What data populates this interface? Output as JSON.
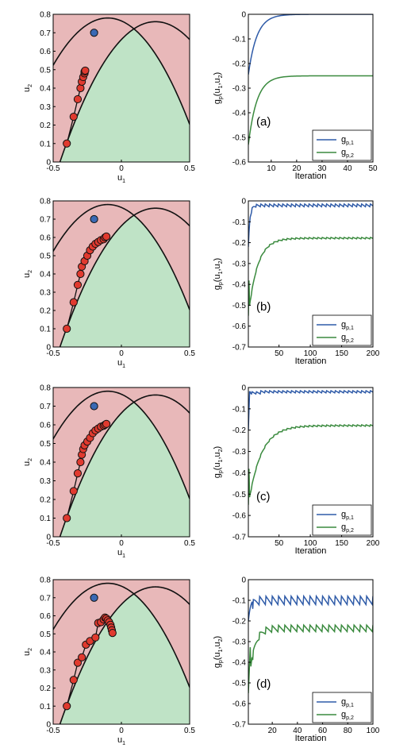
{
  "colors": {
    "infeasible": "#e8b8b9",
    "feasible": "#bfe3c6",
    "curve": "#111111",
    "iterate": "#e03a2f",
    "optimum": "#3a69b4",
    "series1": "#2f5ba8",
    "series2": "#3a8a3e"
  },
  "chart_data": [
    {
      "type": "scatter",
      "panel": "a-left",
      "xlabel": "u",
      "xlabel_sub": "1",
      "ylabel": "u",
      "ylabel_sub": "2",
      "xlim": [
        -0.5,
        0.5
      ],
      "ylim": [
        0,
        0.8
      ],
      "xticks": [
        "-0.5",
        "0",
        "0.5"
      ],
      "yticks": [
        "0",
        "0.1",
        "0.2",
        "0.3",
        "0.4",
        "0.5",
        "0.6",
        "0.7",
        "0.8"
      ],
      "optimum": [
        -0.2,
        0.7
      ],
      "iterates": [
        [
          -0.4,
          0.1
        ],
        [
          -0.35,
          0.245
        ],
        [
          -0.32,
          0.34
        ],
        [
          -0.3,
          0.4
        ],
        [
          -0.29,
          0.435
        ],
        [
          -0.28,
          0.46
        ],
        [
          -0.27,
          0.48
        ],
        [
          -0.27,
          0.49
        ],
        [
          -0.265,
          0.495
        ]
      ]
    },
    {
      "type": "line",
      "panel": "a-right",
      "label": "(a)",
      "xlabel": "Iteration",
      "ylabel": "g",
      "ylabel_sub": "p",
      "ylabel_args": "(u",
      "ylabel_args_sub1": "1",
      "ylabel_args_mid": ",u",
      "ylabel_args_sub2": "2",
      "ylabel_args_end": ")",
      "xlim": [
        1,
        50
      ],
      "ylim": [
        -0.6,
        0
      ],
      "xticks": [
        "10",
        "20",
        "30",
        "40",
        "50"
      ],
      "xtick_values": [
        10,
        20,
        30,
        40,
        50
      ],
      "yticks": [
        "-0.6",
        "-0.5",
        "-0.4",
        "-0.3",
        "-0.2",
        "-0.1",
        "0"
      ],
      "series": [
        {
          "legend": "g",
          "legend_sub": "p,1",
          "color_key": "series1",
          "kind": "exp",
          "start": -0.245,
          "end": 0.0,
          "rate": 0.3,
          "osc": 0,
          "period": 6
        },
        {
          "legend": "g",
          "legend_sub": "p,2",
          "color_key": "series2",
          "kind": "exp",
          "start": -0.53,
          "end": -0.25,
          "rate": 0.3,
          "osc": 0,
          "period": 6
        }
      ]
    },
    {
      "type": "scatter",
      "panel": "b-left",
      "xlabel": "u",
      "xlabel_sub": "1",
      "ylabel": "u",
      "ylabel_sub": "2",
      "xlim": [
        -0.5,
        0.5
      ],
      "ylim": [
        0,
        0.8
      ],
      "xticks": [
        "-0.5",
        "0",
        "0.5"
      ],
      "yticks": [
        "0",
        "0.1",
        "0.2",
        "0.3",
        "0.4",
        "0.5",
        "0.6",
        "0.7",
        "0.8"
      ],
      "optimum": [
        -0.2,
        0.7
      ],
      "iterates": [
        [
          -0.4,
          0.1
        ],
        [
          -0.35,
          0.245
        ],
        [
          -0.32,
          0.34
        ],
        [
          -0.3,
          0.4
        ],
        [
          -0.29,
          0.44
        ],
        [
          -0.27,
          0.47
        ],
        [
          -0.25,
          0.5
        ],
        [
          -0.23,
          0.53
        ],
        [
          -0.21,
          0.55
        ],
        [
          -0.19,
          0.565
        ],
        [
          -0.17,
          0.575
        ],
        [
          -0.15,
          0.585
        ],
        [
          -0.13,
          0.59
        ],
        [
          -0.12,
          0.6
        ],
        [
          -0.11,
          0.605
        ]
      ]
    },
    {
      "type": "line",
      "panel": "b-right",
      "label": "(b)",
      "xlabel": "Iteration",
      "ylabel": "g",
      "ylabel_sub": "p",
      "ylabel_args": "(u",
      "ylabel_args_sub1": "1",
      "ylabel_args_mid": ",u",
      "ylabel_args_sub2": "2",
      "ylabel_args_end": ")",
      "xlim": [
        1,
        200
      ],
      "ylim": [
        -0.7,
        0
      ],
      "xticks": [
        "50",
        "100",
        "150",
        "200"
      ],
      "xtick_values": [
        50,
        100,
        150,
        200
      ],
      "yticks": [
        "-0.7",
        "-0.6",
        "-0.5",
        "-0.4",
        "-0.3",
        "-0.2",
        "-0.1",
        "0"
      ],
      "series": [
        {
          "legend": "g",
          "legend_sub": "p,1",
          "color_key": "series1",
          "kind": "exp",
          "start": -0.22,
          "end": -0.015,
          "rate": 0.4,
          "osc": 0.015,
          "period": 7
        },
        {
          "legend": "g",
          "legend_sub": "p,2",
          "color_key": "series2",
          "kind": "steps",
          "start": -0.55,
          "end": -0.175,
          "rate": 0.07,
          "osc": 0.008,
          "period": 7
        }
      ]
    },
    {
      "type": "scatter",
      "panel": "c-left",
      "xlabel": "u",
      "xlabel_sub": "1",
      "ylabel": "u",
      "ylabel_sub": "2",
      "xlim": [
        -0.5,
        0.5
      ],
      "ylim": [
        0,
        0.8
      ],
      "xticks": [
        "-0.5",
        "0",
        "0.5"
      ],
      "yticks": [
        "0",
        "0.1",
        "0.2",
        "0.3",
        "0.4",
        "0.5",
        "0.6",
        "0.7",
        "0.8"
      ],
      "optimum": [
        -0.2,
        0.7
      ],
      "iterates": [
        [
          -0.4,
          0.1
        ],
        [
          -0.35,
          0.245
        ],
        [
          -0.32,
          0.34
        ],
        [
          -0.3,
          0.4
        ],
        [
          -0.29,
          0.44
        ],
        [
          -0.28,
          0.47
        ],
        [
          -0.27,
          0.49
        ],
        [
          -0.25,
          0.51
        ],
        [
          -0.23,
          0.53
        ],
        [
          -0.21,
          0.555
        ],
        [
          -0.19,
          0.57
        ],
        [
          -0.17,
          0.58
        ],
        [
          -0.15,
          0.59
        ],
        [
          -0.13,
          0.595
        ],
        [
          -0.12,
          0.6
        ],
        [
          -0.11,
          0.605
        ]
      ]
    },
    {
      "type": "line",
      "panel": "c-right",
      "label": "(c)",
      "xlabel": "Iteration",
      "ylabel": "g",
      "ylabel_sub": "p",
      "ylabel_args": "(u",
      "ylabel_args_sub1": "1",
      "ylabel_args_mid": ",u",
      "ylabel_args_sub2": "2",
      "ylabel_args_end": ")",
      "xlim": [
        1,
        200
      ],
      "ylim": [
        -0.7,
        0
      ],
      "xticks": [
        "50",
        "100",
        "150",
        "200"
      ],
      "xtick_values": [
        50,
        100,
        150,
        200
      ],
      "yticks": [
        "-0.7",
        "-0.6",
        "-0.5",
        "-0.4",
        "-0.3",
        "-0.2",
        "-0.1",
        "0"
      ],
      "series": [
        {
          "legend": "g",
          "legend_sub": "p,1",
          "color_key": "series1",
          "kind": "delayed",
          "start": -0.2,
          "end": -0.015,
          "rate": 0.4,
          "osc": 0.012,
          "period": 7
        },
        {
          "legend": "g",
          "legend_sub": "p,2",
          "color_key": "series2",
          "kind": "steps",
          "start": -0.55,
          "end": -0.175,
          "rate": 0.05,
          "osc": 0.008,
          "period": 7
        }
      ]
    },
    {
      "type": "scatter",
      "panel": "d-left",
      "xlabel": "u",
      "xlabel_sub": "1",
      "ylabel": "u",
      "ylabel_sub": "2",
      "xlim": [
        -0.5,
        0.5
      ],
      "ylim": [
        0,
        0.8
      ],
      "xticks": [
        "-0.5",
        "0",
        "0.5"
      ],
      "yticks": [
        "0",
        "0.1",
        "0.2",
        "0.3",
        "0.4",
        "0.5",
        "0.6",
        "0.7",
        "0.8"
      ],
      "optimum": [
        -0.2,
        0.7
      ],
      "iterates": [
        [
          -0.4,
          0.1
        ],
        [
          -0.35,
          0.245
        ],
        [
          -0.32,
          0.34
        ],
        [
          -0.29,
          0.37
        ],
        [
          -0.26,
          0.44
        ],
        [
          -0.23,
          0.46
        ],
        [
          -0.19,
          0.48
        ],
        [
          -0.17,
          0.56
        ],
        [
          -0.15,
          0.565
        ],
        [
          -0.13,
          0.58
        ],
        [
          -0.12,
          0.59
        ],
        [
          -0.11,
          0.585
        ],
        [
          -0.1,
          0.575
        ],
        [
          -0.09,
          0.565
        ],
        [
          -0.08,
          0.55
        ],
        [
          -0.075,
          0.535
        ],
        [
          -0.07,
          0.52
        ],
        [
          -0.065,
          0.505
        ]
      ]
    },
    {
      "type": "line",
      "panel": "d-right",
      "label": "(d)",
      "xlabel": "Iteration",
      "ylabel": "g",
      "ylabel_sub": "p",
      "ylabel_args": "(u",
      "ylabel_args_sub1": "1",
      "ylabel_args_mid": ",u",
      "ylabel_args_sub2": "2",
      "ylabel_args_end": ")",
      "xlim": [
        1,
        100
      ],
      "ylim": [
        -0.7,
        0
      ],
      "xticks": [
        "20",
        "40",
        "60",
        "80",
        "100"
      ],
      "xtick_values": [
        20,
        40,
        60,
        80,
        100
      ],
      "yticks": [
        "-0.7",
        "-0.6",
        "-0.5",
        "-0.4",
        "-0.3",
        "-0.2",
        "-0.1",
        "0"
      ],
      "series": [
        {
          "legend": "g",
          "legend_sub": "p,1",
          "color_key": "series1",
          "kind": "exp",
          "start": -0.2,
          "end": -0.08,
          "rate": 0.5,
          "osc": 0.045,
          "period": 5
        },
        {
          "legend": "g",
          "legend_sub": "p,2",
          "color_key": "series2",
          "kind": "steps",
          "start": -0.55,
          "end": -0.22,
          "rate": 0.25,
          "osc": 0.035,
          "period": 5
        }
      ]
    }
  ]
}
